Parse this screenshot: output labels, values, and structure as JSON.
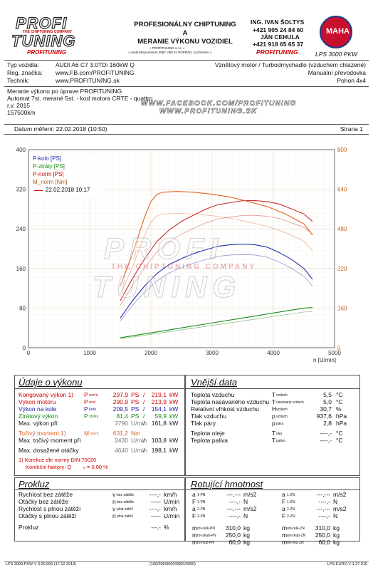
{
  "header": {
    "logo_top": "PROFI",
    "logo_tagline": "THE CHIPTUNING COMPANY",
    "logo_bottom": "TUNING",
    "logo_sub": "PROFITUNING",
    "title1": "PROFESIONÁLNY CHIPTUNING",
    "title2": "A",
    "title3": "MERANIE VÝKONU VOZIDIEL",
    "company_small1": "» PROFITUNING s.r.o. «",
    "company_small2": "» Areál Motocentrum 3097, 058 01 POPRAD, SLOVAKIA «",
    "contact_name1": "ING. IVAN ŠOLTYS",
    "contact_phone1": "+421 905 24 84 60",
    "contact_name2": "JÁN CEHULA",
    "contact_phone2": "+421 918 65 65 37",
    "contact_brand": "PROFITUNING",
    "maha_text": "MAHA",
    "device": "LPS 3000 PKW"
  },
  "vehicle": {
    "type_label": "Typ vozidla:",
    "type_value": "AUDI A6 C7 3.0TDi 160kW Q",
    "reg_label": "Reg. značka:",
    "reg_value": "www.FB.com/PROFITUNING",
    "tech_label": "Technik:",
    "tech_value": "www.PROFITUNING.sk",
    "engine": "Vznětový motor / Turbodmychadlo (vzduchem chlazené)",
    "gearbox": "Manuální převodovka",
    "drive": "Pohon 4x4"
  },
  "notes": {
    "line1": "Meranie výkonu po úprave PROFITUNING",
    "line2": "Automat 7st. merané 5st. - kod motora CRTE - quattro",
    "line3": "r.v. 2015",
    "line4": "157500km",
    "facebook": "WWW.FACEBOOK.COM/PROFITUNING",
    "web": "WWW.PROFITUNING.SK"
  },
  "measure": {
    "date_label": "Datum měření: 22.02.2018 (10:50)",
    "page_label": "Strana 1"
  },
  "chart_data": {
    "type": "line",
    "xlabel": "n [U/min]",
    "xlim": [
      0,
      5000
    ],
    "x_ticks": [
      "0",
      "1000",
      "2000",
      "3000",
      "4000",
      "5000"
    ],
    "ylim_left": [
      0,
      400
    ],
    "ylim_right": [
      0,
      800
    ],
    "y_ticks_left": [
      "400",
      "320",
      "240",
      "160",
      "80",
      "0"
    ],
    "y_ticks_right": [
      "800",
      "640",
      "480",
      "320",
      "160",
      "0"
    ],
    "legend": [
      "P-kolo [PS]",
      "P-ztráty [PS]",
      "P-norm [PS]",
      "M_norm [Nm]",
      "22.02.2018 10:17"
    ],
    "series": [
      {
        "name": "P-norm [PS]",
        "color": "#c83030",
        "axis": "left",
        "x": [
          1500,
          1700,
          1900,
          2100,
          2300,
          2500,
          2700,
          2900,
          3100,
          3300,
          3500,
          3700,
          3900,
          4100,
          4300,
          4500,
          4640
        ],
        "y": [
          95,
          140,
          180,
          215,
          238,
          255,
          268,
          280,
          289,
          293,
          297,
          297,
          295,
          290,
          280,
          270,
          255
        ]
      },
      {
        "name": "P-kolo [PS]",
        "color": "#2030b0",
        "axis": "left",
        "x": [
          1500,
          1700,
          1900,
          2100,
          2300,
          2500,
          2700,
          2900,
          3100,
          3300,
          3500,
          3700,
          3900,
          4100,
          4300,
          4500,
          4640
        ],
        "y": [
          60,
          95,
          125,
          150,
          168,
          180,
          190,
          198,
          205,
          208,
          209,
          208,
          203,
          192,
          178,
          160,
          138
        ]
      },
      {
        "name": "P-ztráty [PS]",
        "color": "#1a8a1a",
        "axis": "left",
        "x": [
          1500,
          2000,
          2500,
          3000,
          3500,
          4000,
          4500,
          4640
        ],
        "y": [
          20,
          30,
          40,
          50,
          60,
          70,
          80,
          81
        ]
      },
      {
        "name": "M_norm [Nm]",
        "color": "#e06020",
        "axis": "right",
        "x": [
          1500,
          1700,
          1900,
          2000,
          2100,
          2200,
          2430,
          2700,
          3000,
          3300,
          3600,
          3900,
          4200,
          4500,
          4640
        ],
        "y": [
          250,
          380,
          530,
          590,
          620,
          628,
          631,
          628,
          620,
          608,
          590,
          570,
          540,
          500,
          455
        ]
      }
    ]
  },
  "vykon": {
    "title": "Údaje o výkonu",
    "rows": [
      {
        "label": "Korigovaný výkon 1)",
        "sym": "P",
        "sub": "norm",
        "v1": "297,9",
        "u1": "PS",
        "v2": "219,1",
        "u2": "kW",
        "color": "#c00"
      },
      {
        "label": "Výkon motoru",
        "sym": "P",
        "sub": "mot",
        "v1": "290,9",
        "u1": "PS",
        "v2": "213,9",
        "u2": "kW",
        "color": "#c00"
      },
      {
        "label": "Výkon na kole",
        "sym": "P",
        "sub": "kolo",
        "v1": "209,5",
        "u1": "PS",
        "v2": "154,1",
        "u2": "kW",
        "color": "#1a1aa8"
      },
      {
        "label": "Ztrátový výkon",
        "sym": "P",
        "sub": "ztráty",
        "v1": "81,4",
        "u1": "PS",
        "v2": "59,9",
        "u2": "kW",
        "color": "#1a8a1a"
      }
    ],
    "max_vykon_label": "Max. výkon při",
    "max_vykon_rpm": "3790",
    "max_vykon_unit": "U/min",
    "max_vykon_val": "161,8",
    "max_vykon_u": "kW",
    "torque_label": "Točivý moment 1)",
    "torque_sym": "M",
    "torque_sub": "norm",
    "torque_val": "631,2",
    "torque_unit": "Nm",
    "max_torque_label": "Max. točivý moment při",
    "max_torque_rpm": "2430",
    "max_torque_unit": "U/min",
    "max_torque_val": "103,8",
    "max_torque_u": "kW",
    "max_rpm_label": "Max. dosažené otáčky",
    "max_rpm_val": "4640",
    "max_rpm_unit": "U/min",
    "max_rpm_kw": "198,1",
    "max_rpm_u": "kW",
    "korekce": "1) Korekce dle normy DIN 70020",
    "faktor": "Korekční faktory: Q",
    "faktor_sub": "v",
    "faktor_val": "= 0,00 %"
  },
  "vnejsi": {
    "title": "Vnější data",
    "rows": [
      {
        "label": "Teplota vzduchu",
        "sym": "T",
        "sub": "vzduch",
        "val": "5,5",
        "unit": "°C"
      },
      {
        "label": "Teplota nasávaného vzduchu",
        "sym": "T",
        "sub": "nasávaný vzduch",
        "val": "5,0",
        "unit": "°C"
      },
      {
        "label": "Relativní vlhkost vzduchu",
        "sym": "H",
        "sub": "vzduch",
        "val": "30,7",
        "unit": "%"
      },
      {
        "label": "Tlak vzduchu",
        "sym": "p",
        "sub": "vzduch",
        "val": "937,6",
        "unit": "hPa"
      },
      {
        "label": "Tlak páry",
        "sym": "p",
        "sub": "pára",
        "val": "2,8",
        "unit": "hPa"
      },
      {
        "label": "Teplota oleje",
        "sym": "T",
        "sub": "olej",
        "val": "----,-",
        "unit": "°C"
      },
      {
        "label": "Teplota paliva",
        "sym": "T",
        "sub": "palivo",
        "val": "----,-",
        "unit": "°C"
      }
    ]
  },
  "prokluz": {
    "title": "Prokluz",
    "rows": [
      {
        "label": "Rychlost bez zátěže",
        "sym": "v",
        "sub": "bez zátěže",
        "val": "----,-",
        "unit": "km/h"
      },
      {
        "label": "Otáčky bez zátěže",
        "sym": "n",
        "sub": "bez zátěže",
        "val": "-----",
        "unit": "U/min"
      },
      {
        "label": "Rychlost s plnou zátěží",
        "sym": "v",
        "sub": "plná zátěž",
        "val": "----,-",
        "unit": "km/h"
      },
      {
        "label": "Otáčky s plnou zátěží",
        "sym": "n",
        "sub": "plná zátěž",
        "val": "-----",
        "unit": "U/min"
      }
    ],
    "prokluz_label": "Prokluz",
    "prokluz_val": "---,-",
    "prokluz_unit": "%"
  },
  "rotujici": {
    "title": "Rotující hmotnost",
    "left": [
      {
        "sym": "a",
        "sub": "1-PN",
        "val": "---,---",
        "unit": "m/s2"
      },
      {
        "sym": "F",
        "sub": "1-PN",
        "val": "----,-",
        "unit": "N"
      },
      {
        "sym": "a",
        "sub": "2-PN",
        "val": "---,---",
        "unit": "m/s2"
      },
      {
        "sym": "F",
        "sub": "2-PN",
        "val": "----,-",
        "unit": "N"
      }
    ],
    "right": [
      {
        "sym": "a",
        "sub": "1-ZN",
        "val": "---,---",
        "unit": "m/s2"
      },
      {
        "sym": "F",
        "sub": "1-ZN",
        "val": "----,-",
        "unit": "N"
      },
      {
        "sym": "a",
        "sub": "2-ZN",
        "val": "---,---",
        "unit": "m/s2"
      },
      {
        "sym": "F",
        "sub": "2-ZN",
        "val": "----,-",
        "unit": "N"
      }
    ],
    "mass_left": [
      {
        "sym": "m",
        "sub": "rot-celk-PN",
        "val": "310,0",
        "unit": "kg"
      },
      {
        "sym": "m",
        "sub": "rot-zkub-PN",
        "val": "250,0",
        "unit": "kg"
      },
      {
        "sym": "m",
        "sub": "rot-voz-PN",
        "val": "60,0",
        "unit": "kg"
      }
    ],
    "mass_right": [
      {
        "sym": "m",
        "sub": "rot-celk-ZN",
        "val": "310,0",
        "unit": "kg"
      },
      {
        "sym": "m",
        "sub": "rot-zkub-ZN",
        "val": "250,0",
        "unit": "kg"
      },
      {
        "sym": "m",
        "sub": "rot-voz-ZN",
        "val": "60,0",
        "unit": "kg"
      }
    ]
  },
  "footer": {
    "left": "LPS 3000 PKW V 3.00.000 (17.12.2013)",
    "mid": "(100/000/0000/0000/0000)",
    "right": "LPS-EURO V 1.37.010"
  }
}
